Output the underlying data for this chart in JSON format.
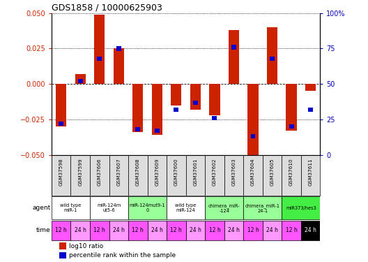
{
  "title": "GDS1858 / 10000625903",
  "samples": [
    "GSM37598",
    "GSM37599",
    "GSM37606",
    "GSM37607",
    "GSM37608",
    "GSM37609",
    "GSM37600",
    "GSM37601",
    "GSM37602",
    "GSM37603",
    "GSM37604",
    "GSM37605",
    "GSM37610",
    "GSM37611"
  ],
  "log10_ratio": [
    -0.03,
    0.007,
    0.049,
    0.025,
    -0.034,
    -0.036,
    -0.015,
    -0.018,
    -0.022,
    0.038,
    -0.052,
    0.04,
    -0.033,
    -0.005
  ],
  "percentile_rank": [
    22,
    52,
    68,
    75,
    18,
    17,
    32,
    37,
    26,
    76,
    13,
    68,
    20,
    32
  ],
  "ylim": [
    -0.05,
    0.05
  ],
  "yticks_left": [
    -0.05,
    -0.025,
    0,
    0.025,
    0.05
  ],
  "yticks_right": [
    0,
    25,
    50,
    75,
    100
  ],
  "agents": [
    {
      "label": "wild type\nmiR-1",
      "cols": [
        0,
        1
      ],
      "color": "#ffffff"
    },
    {
      "label": "miR-124m\nut5-6",
      "cols": [
        2,
        3
      ],
      "color": "#ffffff"
    },
    {
      "label": "miR-124mut9-1\n0",
      "cols": [
        4,
        5
      ],
      "color": "#99ff99"
    },
    {
      "label": "wild type\nmiR-124",
      "cols": [
        6,
        7
      ],
      "color": "#ffffff"
    },
    {
      "label": "chimera_miR-\n-124",
      "cols": [
        8,
        9
      ],
      "color": "#99ff99"
    },
    {
      "label": "chimera_miR-1\n24-1",
      "cols": [
        10,
        11
      ],
      "color": "#99ff99"
    },
    {
      "label": "miR373/hes3",
      "cols": [
        12,
        13
      ],
      "color": "#44ee44"
    }
  ],
  "time_labels": [
    "12 h",
    "24 h",
    "12 h",
    "24 h",
    "12 h",
    "24 h",
    "12 h",
    "24 h",
    "12 h",
    "24 h",
    "12 h",
    "24 h",
    "12 h",
    "24 h"
  ],
  "bar_color": "#cc2200",
  "prank_color": "#0000cc",
  "label_color_left": "#cc2200",
  "label_color_right": "#0000bb",
  "bar_width": 0.55,
  "prank_bar_width": 0.25,
  "prank_bar_height": 0.003
}
